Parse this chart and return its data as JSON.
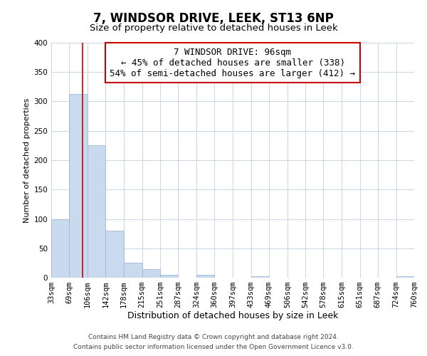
{
  "title": "7, WINDSOR DRIVE, LEEK, ST13 6NP",
  "subtitle": "Size of property relative to detached houses in Leek",
  "xlabel": "Distribution of detached houses by size in Leek",
  "ylabel": "Number of detached properties",
  "bin_edges": [
    33,
    69,
    106,
    142,
    178,
    215,
    251,
    287,
    324,
    360,
    397,
    433,
    469,
    506,
    542,
    578,
    615,
    651,
    687,
    724,
    760
  ],
  "bar_heights": [
    100,
    313,
    225,
    80,
    25,
    15,
    5,
    0,
    5,
    0,
    0,
    2,
    0,
    0,
    0,
    0,
    0,
    0,
    0,
    3
  ],
  "bar_color": "#c9d9ee",
  "bar_edgecolor": "#a0b8d8",
  "property_size": 96,
  "vline_color": "#cc0000",
  "annotation_line1": "7 WINDSOR DRIVE: 96sqm",
  "annotation_line2": "← 45% of detached houses are smaller (338)",
  "annotation_line3": "54% of semi-detached houses are larger (412) →",
  "ylim": [
    0,
    400
  ],
  "yticks": [
    0,
    50,
    100,
    150,
    200,
    250,
    300,
    350,
    400
  ],
  "footer_line1": "Contains HM Land Registry data © Crown copyright and database right 2024.",
  "footer_line2": "Contains public sector information licensed under the Open Government Licence v3.0.",
  "bg_color": "#ffffff",
  "plot_bg_color": "#ffffff",
  "grid_color": "#c8d4e8",
  "title_fontsize": 12,
  "subtitle_fontsize": 9.5,
  "xlabel_fontsize": 9,
  "ylabel_fontsize": 8,
  "tick_fontsize": 7.5,
  "footer_fontsize": 6.5,
  "annotation_fontsize": 9
}
